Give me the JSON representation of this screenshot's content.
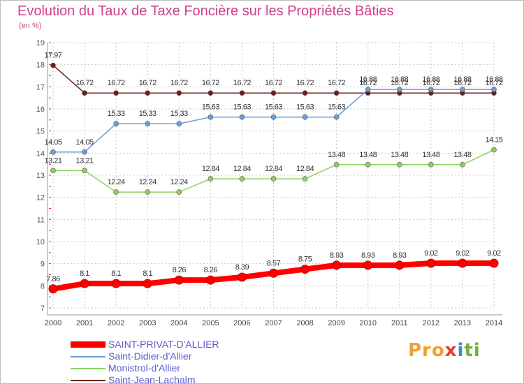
{
  "chart_data": {
    "type": "line",
    "title": "Evolution du Taux de Taxe Foncière sur les Propriétés Bâties",
    "unit_label": "(en %)",
    "xlabel": "",
    "ylabel": "",
    "x": [
      "2000",
      "2001",
      "2002",
      "2003",
      "2004",
      "2005",
      "2006",
      "2007",
      "2008",
      "2009",
      "2010",
      "2011",
      "2012",
      "2013",
      "2014"
    ],
    "ylim": [
      7,
      19
    ],
    "yticks": [
      7,
      8,
      9,
      10,
      11,
      12,
      13,
      14,
      15,
      16,
      17,
      18,
      19
    ],
    "grid": true,
    "series": [
      {
        "name": "Saint-Jean-Lachalm",
        "color": "#6b1f1f",
        "values": [
          17.97,
          16.72,
          16.72,
          16.72,
          16.72,
          16.72,
          16.72,
          16.72,
          16.72,
          16.72,
          16.72,
          16.72,
          16.72,
          16.72,
          16.72
        ],
        "labels": [
          "17.97",
          "16.72",
          "16.72",
          "16.72",
          "16.72",
          "16.72",
          "16.72",
          "16.72",
          "16.72",
          "16.72",
          "16.72",
          "16.72",
          "16.72",
          "16.72",
          "16.72"
        ]
      },
      {
        "name": "Saint-Didier-d'Allier",
        "color": "#6a9ed8",
        "values": [
          14.05,
          14.05,
          15.33,
          15.33,
          15.33,
          15.63,
          15.63,
          15.63,
          15.63,
          15.63,
          16.88,
          16.88,
          16.88,
          16.88,
          16.88
        ],
        "labels": [
          "14.05",
          "14.05",
          "15.33",
          "15.33",
          "15.33",
          "15.63",
          "15.63",
          "15.63",
          "15.63",
          "15.63",
          "16.88",
          "16.88",
          "16.88",
          "16.88",
          "16.88"
        ]
      },
      {
        "name": "Monistrol-d'Allier",
        "color": "#90d060",
        "values": [
          13.21,
          13.21,
          12.24,
          12.24,
          12.24,
          12.84,
          12.84,
          12.84,
          12.84,
          13.48,
          13.48,
          13.48,
          13.48,
          13.48,
          14.15
        ],
        "labels": [
          "13.21",
          "13.21",
          "12.24",
          "12.24",
          "12.24",
          "12.84",
          "12.84",
          "12.84",
          "12.84",
          "13.48",
          "13.48",
          "13.48",
          "13.48",
          "13.48",
          "14.15"
        ]
      },
      {
        "name": "SAINT-PRIVAT-D'ALLIER",
        "color": "#ff0000",
        "values": [
          7.86,
          8.1,
          8.1,
          8.1,
          8.26,
          8.26,
          8.39,
          8.57,
          8.75,
          8.93,
          8.93,
          8.93,
          9.02,
          9.02,
          9.02
        ],
        "labels": [
          "7.86",
          "8.1",
          "8.1",
          "8.1",
          "8.26",
          "8.26",
          "8.39",
          "8.57",
          "8.75",
          "8.93",
          "8.93",
          "8.93",
          "9.02",
          "9.02",
          "9.02"
        ]
      }
    ],
    "legend": [
      "SAINT-PRIVAT-D'ALLIER",
      "Saint-Didier-d'Allier",
      "Monistrol-d'Allier",
      "Saint-Jean-Lachalm"
    ],
    "legend_position": "bottom-left"
  },
  "logo": {
    "p1": "Pro",
    "p2": "x",
    "p3": "i",
    "p4": "ti"
  }
}
